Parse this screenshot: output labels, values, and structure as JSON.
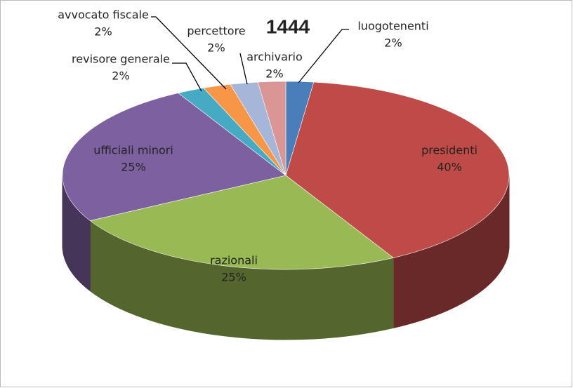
{
  "chart_data": {
    "type": "pie3d",
    "title": "1444",
    "categories": [
      "luogotenenti",
      "presidenti",
      "razionali",
      "ufficiali minori",
      "revisore generale",
      "avvocato fiscale",
      "percettore",
      "archivario"
    ],
    "values": [
      2,
      40,
      25,
      25,
      2,
      2,
      2,
      2
    ],
    "value_labels": [
      "2%",
      "40%",
      "25%",
      "25%",
      "2%",
      "2%",
      "2%",
      "2%"
    ],
    "colors": [
      "#4a7ebb",
      "#be4b48",
      "#98b954",
      "#7d60a0",
      "#46aac5",
      "#f79646",
      "#a5b6d8",
      "#d99694"
    ]
  }
}
